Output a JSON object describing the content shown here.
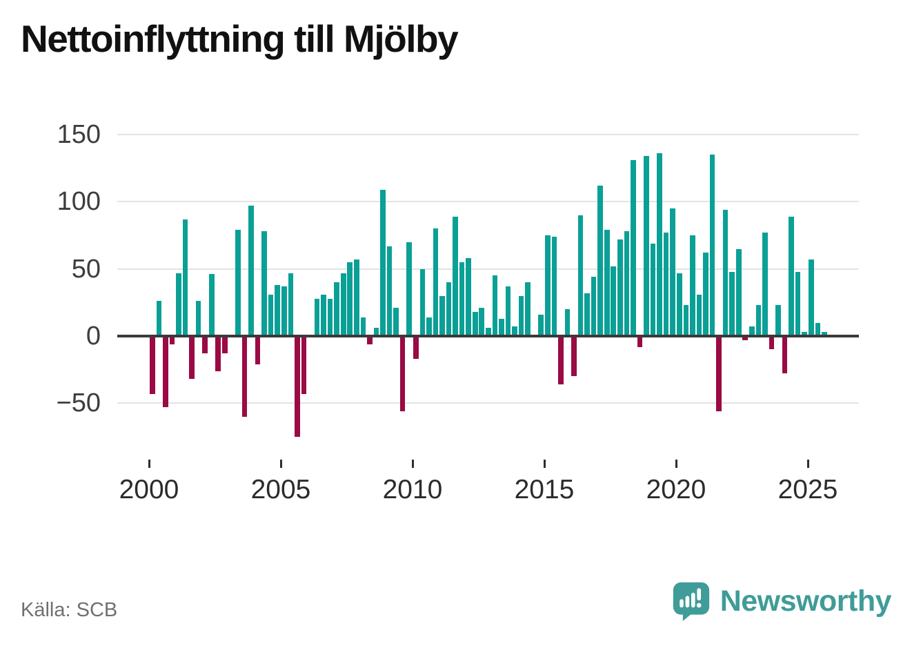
{
  "title": "Nettoinflyttning till Mjölby",
  "source": "Källa: SCB",
  "branding": {
    "name": "Newsworthy",
    "icon": "newsworthy-speech-bubble-chart-icon",
    "color": "#3f9c98"
  },
  "chart_data": {
    "type": "bar",
    "title": "Nettoinflyttning till Mjölby",
    "frequency": "quarterly",
    "start_year": 2000,
    "start_quarter": 1,
    "x_tick_labels": [
      "2000",
      "2005",
      "2010",
      "2015",
      "2020",
      "2025"
    ],
    "y_ticks": [
      150,
      100,
      50,
      0,
      -50
    ],
    "y_tick_labels": [
      "150",
      "100",
      "50",
      "0",
      "−50"
    ],
    "ylim": [
      -80,
      155
    ],
    "grid": "horizontal",
    "positive_color": "#0aa096",
    "negative_color": "#9a0a44",
    "series": [
      {
        "name": "Nettoinflyttning",
        "values": [
          -43,
          26,
          -53,
          -6,
          47,
          87,
          -32,
          26,
          -13,
          46,
          -26,
          -13,
          0,
          79,
          -60,
          97,
          -21,
          78,
          31,
          38,
          37,
          47,
          -75,
          -43,
          0,
          28,
          31,
          28,
          40,
          47,
          55,
          57,
          14,
          -6,
          6,
          109,
          67,
          21,
          -56,
          70,
          -17,
          50,
          14,
          80,
          30,
          40,
          89,
          55,
          58,
          18,
          21,
          6,
          45,
          13,
          37,
          7,
          30,
          40,
          0,
          16,
          75,
          74,
          -36,
          20,
          -30,
          90,
          32,
          44,
          112,
          79,
          52,
          72,
          78,
          131,
          -8,
          134,
          69,
          136,
          77,
          95,
          47,
          23,
          75,
          31,
          62,
          135,
          -56,
          94,
          48,
          65,
          -3,
          7,
          23,
          77,
          -10,
          23,
          -28,
          89,
          48,
          3,
          57,
          10,
          3
        ]
      }
    ]
  }
}
